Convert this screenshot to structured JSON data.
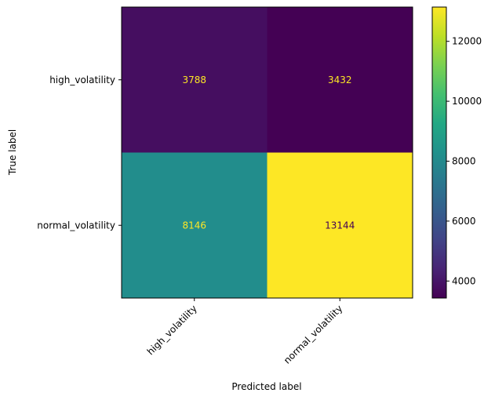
{
  "chart_data": {
    "type": "heatmap",
    "title": "",
    "xlabel": "Predicted label",
    "ylabel": "True label",
    "x_categories": [
      "high_volatility",
      "normal_volatility"
    ],
    "y_categories": [
      "high_volatility",
      "normal_volatility"
    ],
    "values": [
      [
        3788,
        3432
      ],
      [
        8146,
        13144
      ]
    ],
    "colormap": "viridis",
    "colorbar": {
      "range": [
        3432,
        13144
      ],
      "ticks": [
        "4000",
        "6000",
        "8000",
        "10000",
        "12000"
      ]
    },
    "grid": false
  }
}
